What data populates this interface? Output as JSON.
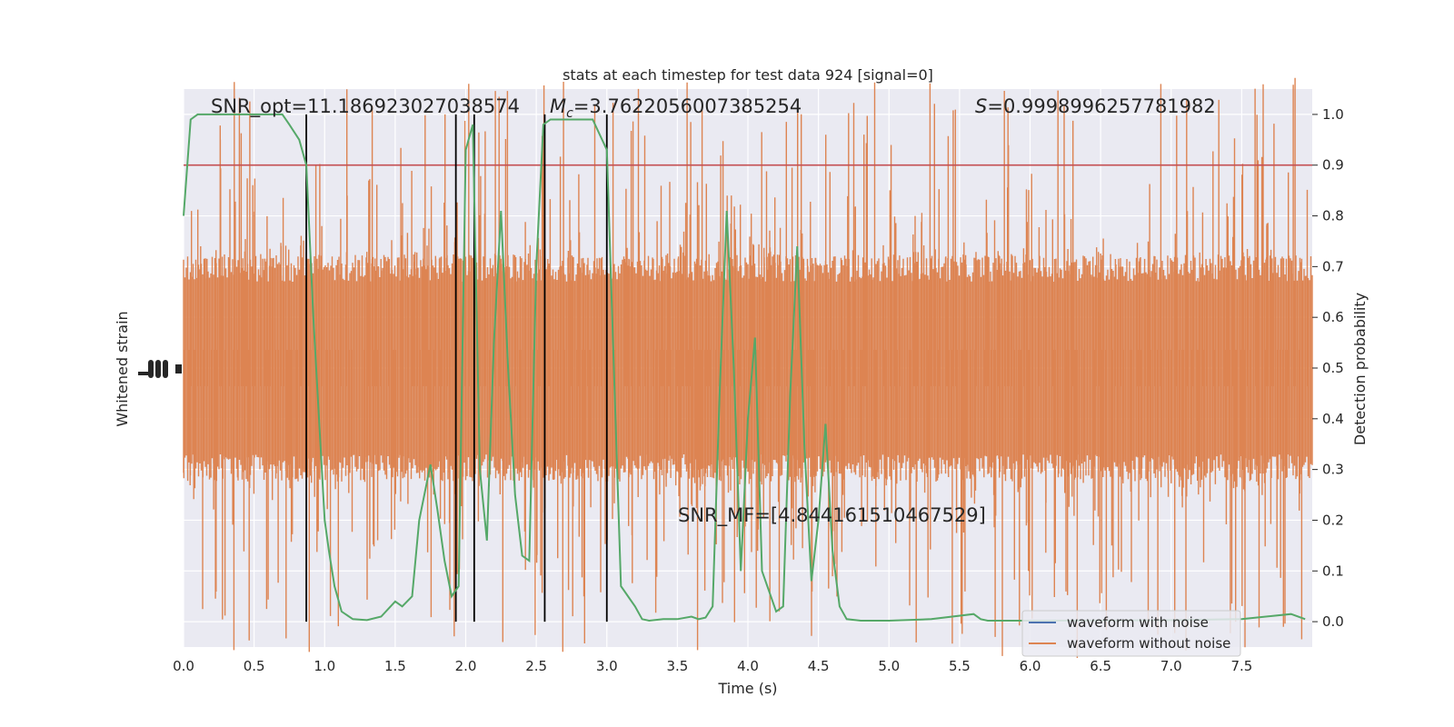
{
  "chart_data": {
    "type": "line",
    "title": "stats at each timestep for test data 924 [signal=0]",
    "xlabel": "Time (s)",
    "ylabel_left": "Whitened strain",
    "ylabel_right": "Detection probability",
    "xlim": [
      0.0,
      8.0
    ],
    "ylim_right": [
      -0.05,
      1.05
    ],
    "x_ticks": [
      "0.0",
      "0.5",
      "1.0",
      "1.5",
      "2.0",
      "2.5",
      "3.0",
      "3.5",
      "4.0",
      "4.5",
      "5.0",
      "5.5",
      "6.0",
      "6.5",
      "7.0",
      "7.5"
    ],
    "y_ticks_right": [
      "0.0",
      "0.1",
      "0.2",
      "0.3",
      "0.4",
      "0.5",
      "0.6",
      "0.7",
      "0.8",
      "0.9",
      "1.0"
    ],
    "grid": true,
    "legend_position": "lower right",
    "annotations": {
      "snr_opt": "SNR_opt=11.186923027038574",
      "mc_symbol": "M",
      "mc_sub": "c",
      "mc_value": "=3.7622056007385254",
      "s_symbol": "S",
      "s_value": "=0.9998996257781982",
      "snr_mf": "SNR_MF=[4.844161510467529]"
    },
    "threshold": 0.9,
    "vertical_lines_x": [
      0.87,
      1.93,
      2.06,
      2.56,
      3.0
    ],
    "series": [
      {
        "name": "waveform with noise",
        "color": "#4c72b0",
        "kind": "legend-only"
      },
      {
        "name": "waveform without noise",
        "color": "#dd8452",
        "kind": "strain-noise"
      },
      {
        "color": "#55a868",
        "kind": "probability",
        "x": [
          0.0,
          0.05,
          0.1,
          0.2,
          0.3,
          0.4,
          0.5,
          0.6,
          0.7,
          0.75,
          0.82,
          0.87,
          0.92,
          0.97,
          1.0,
          1.03,
          1.07,
          1.12,
          1.2,
          1.3,
          1.4,
          1.5,
          1.55,
          1.62,
          1.67,
          1.75,
          1.8,
          1.85,
          1.9,
          1.95,
          2.0,
          2.05,
          2.1,
          2.15,
          2.2,
          2.25,
          2.3,
          2.35,
          2.4,
          2.45,
          2.5,
          2.55,
          2.6,
          2.65,
          2.7,
          2.8,
          2.9,
          3.0,
          3.05,
          3.1,
          3.2,
          3.25,
          3.3,
          3.4,
          3.5,
          3.6,
          3.65,
          3.7,
          3.75,
          3.8,
          3.85,
          3.9,
          3.95,
          4.0,
          4.05,
          4.1,
          4.2,
          4.25,
          4.3,
          4.35,
          4.4,
          4.45,
          4.5,
          4.55,
          4.6,
          4.65,
          4.7,
          4.8,
          5.0,
          5.3,
          5.6,
          5.65,
          5.7,
          5.8,
          6.0,
          7.0,
          7.5,
          7.85,
          7.95
        ],
        "y": [
          0.8,
          0.99,
          1.0,
          1.0,
          1.0,
          1.0,
          1.0,
          1.0,
          1.0,
          0.98,
          0.95,
          0.9,
          0.6,
          0.35,
          0.2,
          0.14,
          0.07,
          0.02,
          0.005,
          0.003,
          0.01,
          0.04,
          0.03,
          0.05,
          0.2,
          0.31,
          0.22,
          0.12,
          0.05,
          0.07,
          0.93,
          0.98,
          0.3,
          0.16,
          0.55,
          0.81,
          0.5,
          0.25,
          0.13,
          0.12,
          0.7,
          0.98,
          0.99,
          0.99,
          0.99,
          0.99,
          0.99,
          0.93,
          0.5,
          0.07,
          0.03,
          0.005,
          0.002,
          0.005,
          0.005,
          0.01,
          0.005,
          0.008,
          0.03,
          0.45,
          0.81,
          0.5,
          0.1,
          0.4,
          0.56,
          0.1,
          0.02,
          0.03,
          0.45,
          0.74,
          0.35,
          0.08,
          0.2,
          0.39,
          0.14,
          0.03,
          0.005,
          0.002,
          0.002,
          0.005,
          0.015,
          0.005,
          0.002,
          0.002,
          0.002,
          0.003,
          0.005,
          0.015,
          0.005
        ]
      },
      {
        "color": "#c44e52",
        "kind": "threshold-line"
      },
      {
        "color": "#000000",
        "kind": "vertical-markers"
      }
    ]
  }
}
